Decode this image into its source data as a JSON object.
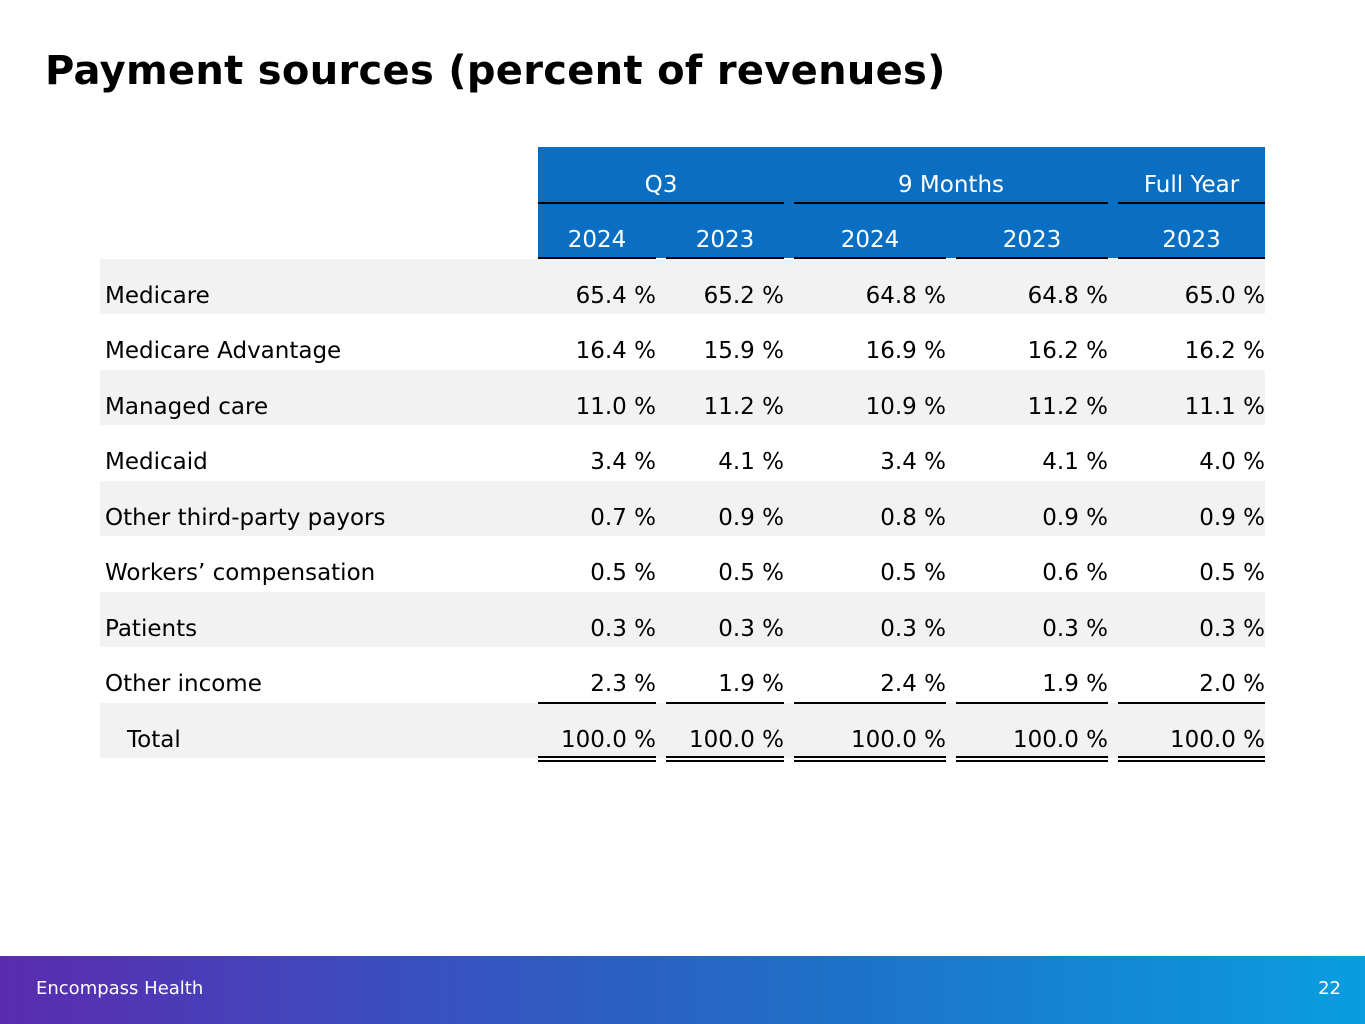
{
  "title": "Payment sources (percent of revenues)",
  "header": {
    "groups": [
      "Q3",
      "9 Months",
      "Full Year"
    ],
    "years": [
      "2024",
      "2023",
      "2024",
      "2023",
      "2023"
    ]
  },
  "rows": [
    {
      "label": "Medicare",
      "values": [
        "65.4 %",
        "65.2 %",
        "64.8 %",
        "64.8 %",
        "65.0 %"
      ]
    },
    {
      "label": "Medicare Advantage",
      "values": [
        "16.4 %",
        "15.9 %",
        "16.9 %",
        "16.2 %",
        "16.2 %"
      ]
    },
    {
      "label": "Managed care",
      "values": [
        "11.0 %",
        "11.2 %",
        "10.9 %",
        "11.2 %",
        "11.1 %"
      ]
    },
    {
      "label": "Medicaid",
      "values": [
        "3.4 %",
        "4.1 %",
        "3.4 %",
        "4.1 %",
        "4.0 %"
      ]
    },
    {
      "label": "Other third-party payors",
      "values": [
        "0.7 %",
        "0.9 %",
        "0.8 %",
        "0.9 %",
        "0.9 %"
      ]
    },
    {
      "label": "Workers’ compensation",
      "values": [
        "0.5 %",
        "0.5 %",
        "0.5 %",
        "0.6 %",
        "0.5 %"
      ]
    },
    {
      "label": "Patients",
      "values": [
        "0.3 %",
        "0.3 %",
        "0.3 %",
        "0.3 %",
        "0.3 %"
      ]
    },
    {
      "label": "Other income",
      "values": [
        "2.3 %",
        "1.9 %",
        "2.4 %",
        "1.9 %",
        "2.0 %"
      ]
    },
    {
      "label": "Total",
      "values": [
        "100.0 %",
        "100.0 %",
        "100.0 %",
        "100.0 %",
        "100.0 %"
      ]
    }
  ],
  "footer": {
    "company": "Encompass Health",
    "page_number": "22"
  },
  "colors": {
    "header_fill": "#0a6fc2",
    "header_text": "#ffffff",
    "row_shade": "#f2f2f2"
  }
}
